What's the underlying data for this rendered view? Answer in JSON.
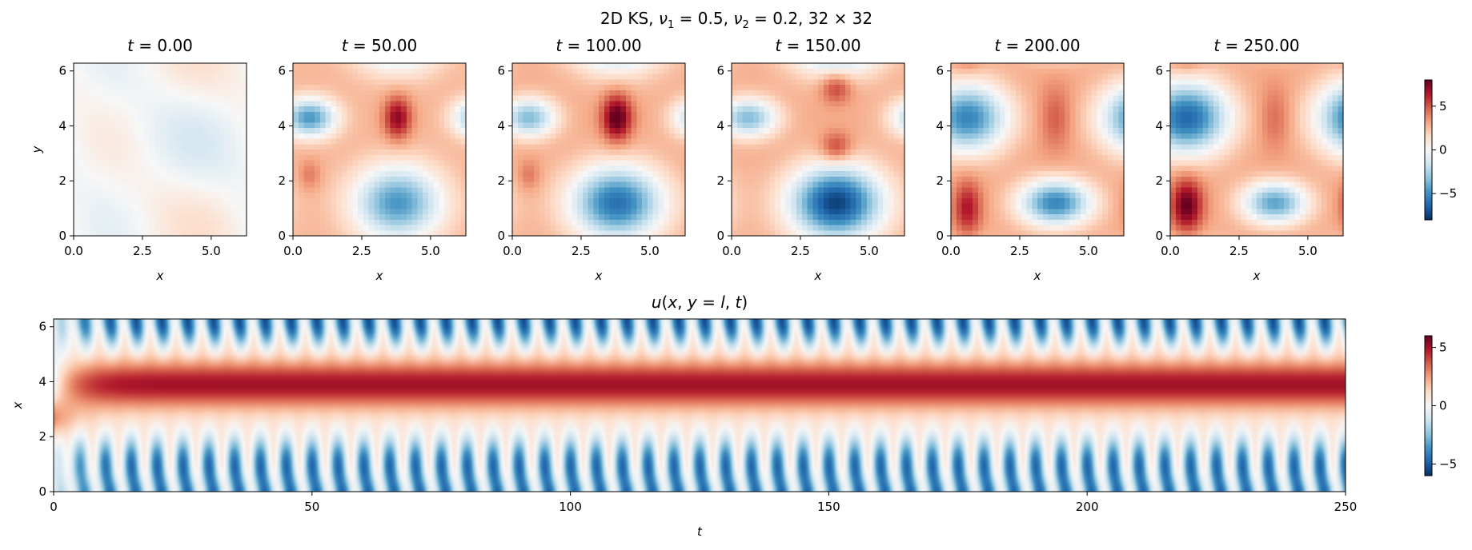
{
  "suptitle": {
    "prefix": "2D KS, ",
    "nu1_sym": "ν",
    "nu1_sub": "1",
    "nu1_rest": " = 0.5, ",
    "nu2_sym": "ν",
    "nu2_sub": "2",
    "nu2_rest": " = 0.2, 32 × 32"
  },
  "chart_data": [
    {
      "type": "heatmap",
      "panels": [
        {
          "label_sym": "t",
          "label_rest": " = 0.00",
          "time": 0
        },
        {
          "label_sym": "t",
          "label_rest": " = 50.00",
          "time": 50
        },
        {
          "label_sym": "t",
          "label_rest": " = 100.00",
          "time": 100
        },
        {
          "label_sym": "t",
          "label_rest": " = 150.00",
          "time": 150
        },
        {
          "label_sym": "t",
          "label_rest": " = 200.00",
          "time": 200
        },
        {
          "label_sym": "t",
          "label_rest": " = 250.00",
          "time": 250
        }
      ],
      "grid": [
        32,
        32
      ],
      "xlabel": "x",
      "ylabel": "y",
      "xlim": [
        0,
        6.283
      ],
      "ylim": [
        0,
        6.283
      ],
      "xticks": [
        "0.0",
        "2.5",
        "5.0"
      ],
      "xtick_values": [
        0,
        2.5,
        5.0
      ],
      "yticks": [
        "0",
        "2",
        "4",
        "6"
      ],
      "ytick_values": [
        0,
        2,
        4,
        6
      ],
      "colormap": "RdBu_r",
      "colorbar": {
        "range": [
          -8,
          8
        ],
        "ticks": [
          "−5",
          "0",
          "5"
        ],
        "tick_values": [
          -5,
          0,
          5
        ]
      }
    },
    {
      "type": "heatmap",
      "title": "u(x, y = l, t)",
      "title_parts": {
        "sym1": "u",
        "p1": "(",
        "sym2": "x",
        "p2": ", ",
        "sym3": "y",
        "p3": " = ",
        "sym4": "l",
        "p4": ", ",
        "sym5": "t",
        "p5": ")"
      },
      "xlabel": "t",
      "ylabel": "x",
      "xlim": [
        0,
        250
      ],
      "ylim": [
        0,
        6.283
      ],
      "xticks": [
        "0",
        "50",
        "100",
        "150",
        "200",
        "250"
      ],
      "xtick_values": [
        0,
        50,
        100,
        150,
        200,
        250
      ],
      "yticks": [
        "0",
        "2",
        "4",
        "6"
      ],
      "ytick_values": [
        0,
        2,
        4,
        6
      ],
      "oscillation_periods": 50,
      "colormap": "RdBu_r",
      "colorbar": {
        "range": [
          -6,
          6
        ],
        "ticks": [
          "−5",
          "0",
          "5"
        ],
        "tick_values": [
          -5,
          0,
          5
        ]
      }
    }
  ]
}
